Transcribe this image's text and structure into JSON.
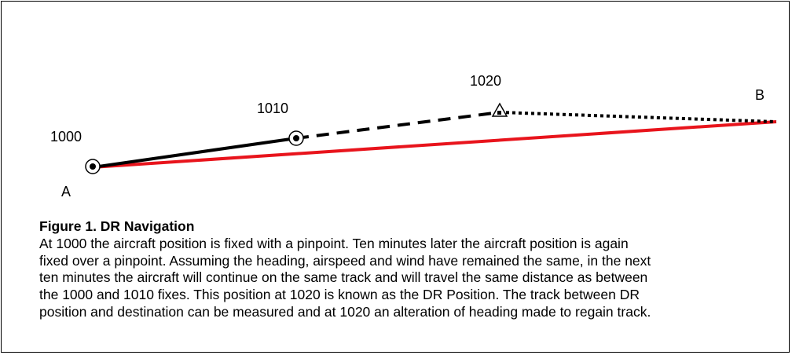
{
  "diagram": {
    "labels": {
      "point_a": "A",
      "point_b": "B",
      "time_1000": "1000",
      "time_1010": "1010",
      "time_1020": "1020"
    },
    "colors": {
      "planned_track": "#e8141c",
      "line": "#000000",
      "background": "#ffffff"
    },
    "legend_semantics": {
      "fix_symbol": "circled-dot",
      "dr_symbol": "triangle-with-dot",
      "actual_track": "solid-black",
      "dr_extrapolation": "dashed-black",
      "dr_to_destination": "dotted-black",
      "required_track": "solid-red"
    }
  },
  "caption": {
    "title": "Figure 1. DR Navigation",
    "lines": [
      "At 1000 the aircraft position is fixed with a pinpoint. Ten minutes later the aircraft position is again",
      "fixed over a pinpoint. Assuming the heading, airspeed and wind have remained the same, in the next",
      "ten minutes the aircraft will continue on the same track and will travel the same distance as between",
      "the 1000 and 1010 fixes. This position at 1020 is known as the DR Position. The track between DR",
      "position and destination can be measured and at 1020 an alteration of heading made to regain track."
    ]
  }
}
